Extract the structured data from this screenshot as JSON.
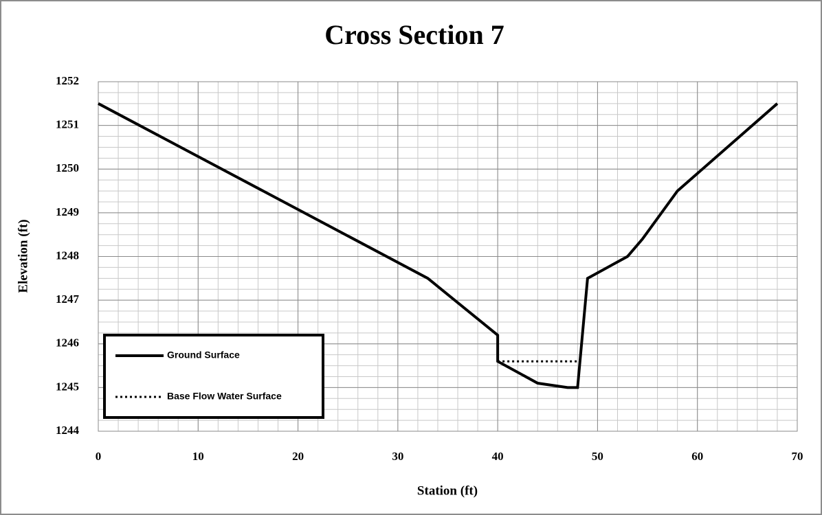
{
  "chart_data": {
    "type": "line",
    "title": "Cross Section 7",
    "xlabel": "Station (ft)",
    "ylabel": "Elevation (ft)",
    "series": [
      {
        "name": "Ground Surface",
        "color": "#000000",
        "style": "solid",
        "x": [
          0,
          33,
          40,
          40,
          44,
          47,
          48,
          49,
          53,
          54.5,
          58,
          68
        ],
        "values": [
          1251.5,
          1247.5,
          1246.2,
          1245.6,
          1245.1,
          1245.0,
          1245.0,
          1247.5,
          1248.0,
          1248.4,
          1249.5,
          1251.5
        ]
      },
      {
        "name": "Base Flow Water Surface",
        "color": "#000000",
        "style": "dotted",
        "x": [
          40,
          48
        ],
        "values": [
          1245.6,
          1245.6
        ]
      }
    ],
    "xlim": [
      0,
      70
    ],
    "xticks": [
      0,
      10,
      20,
      30,
      40,
      50,
      60,
      70
    ],
    "ylim": [
      1244,
      1252
    ],
    "yticks": [
      1244,
      1245,
      1246,
      1247,
      1248,
      1249,
      1250,
      1251,
      1252
    ],
    "grid": true,
    "minor_grid": {
      "x": 2,
      "y": 0.25
    },
    "legend": "lower left"
  }
}
